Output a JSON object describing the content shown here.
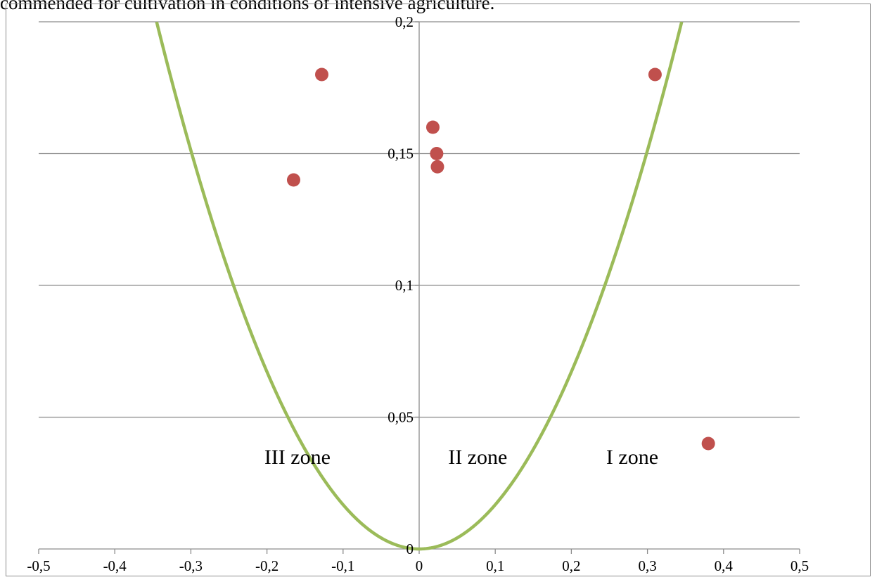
{
  "caption": "commended for cultivation in conditions of intensive agriculture.",
  "chart_data": {
    "type": "scatter",
    "title": "",
    "xlabel": "",
    "ylabel": "",
    "xlim": [
      -0.5,
      0.5
    ],
    "ylim": [
      0,
      0.2
    ],
    "x_ticks": [
      -0.5,
      -0.4,
      -0.3,
      -0.2,
      -0.1,
      0,
      0.1,
      0.2,
      0.3,
      0.4,
      0.5
    ],
    "y_ticks": [
      0,
      0.05,
      0.1,
      0.15,
      0.2
    ],
    "x_tick_labels": [
      "-0,5",
      "-0,4",
      "-0,3",
      "-0,2",
      "-0,1",
      "0",
      "0,1",
      "0,2",
      "0,3",
      "0,4",
      "0,5"
    ],
    "y_tick_labels": [
      "0",
      "0,05",
      "0,1",
      "0,15",
      "0,2"
    ],
    "grid": {
      "horizontal": true,
      "vertical": false
    },
    "legend": "none",
    "series": [
      {
        "kind": "scatter",
        "color": "#c0504d",
        "points": [
          {
            "x": -0.128,
            "y": 0.18
          },
          {
            "x": -0.165,
            "y": 0.14
          },
          {
            "x": 0.018,
            "y": 0.16
          },
          {
            "x": 0.023,
            "y": 0.15
          },
          {
            "x": 0.024,
            "y": 0.145
          },
          {
            "x": 0.31,
            "y": 0.18
          },
          {
            "x": 0.38,
            "y": 0.04
          }
        ]
      },
      {
        "kind": "curve",
        "color": "#9bbb59",
        "equation": "y = 1.68 * x^2",
        "coefficient": 1.68,
        "x_range": [
          -0.345,
          0.345
        ]
      }
    ],
    "annotations": [
      {
        "text": "III zone",
        "x": -0.16,
        "y": 0.035
      },
      {
        "text": "II zone",
        "x": 0.077,
        "y": 0.035
      },
      {
        "text": "I zone",
        "x": 0.28,
        "y": 0.035
      }
    ],
    "colors": {
      "grid": "#8c8c8c",
      "axis": "#8c8c8c",
      "points": "#c0504d",
      "curve": "#9bbb59"
    }
  }
}
